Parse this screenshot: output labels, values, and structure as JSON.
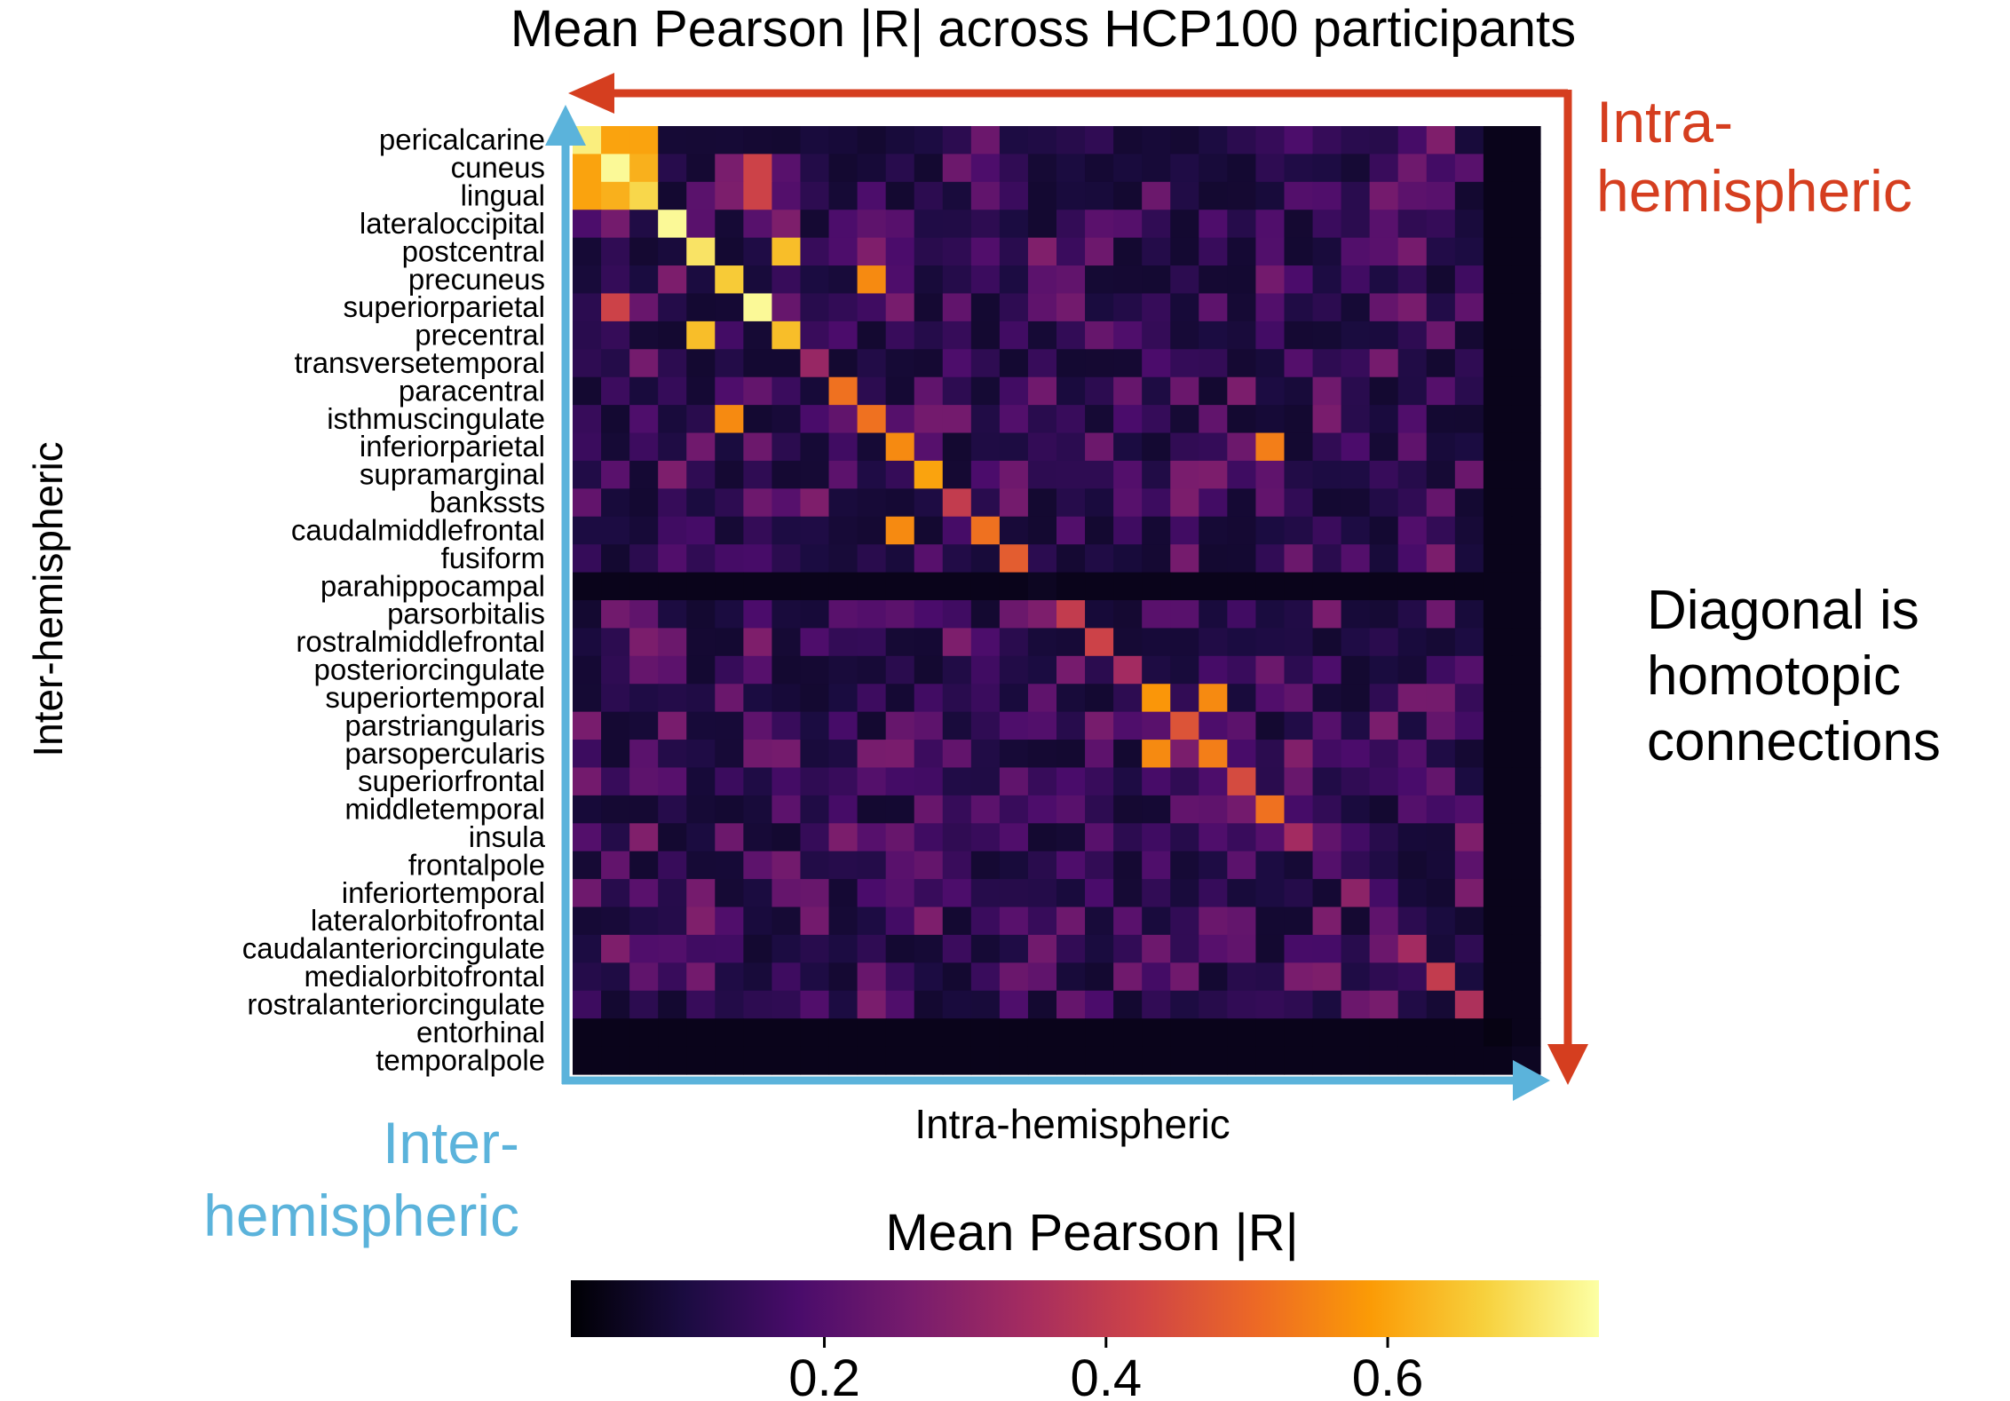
{
  "colors": {
    "intra_arrow": "#d53e1f",
    "inter_arrow": "#5bb3db",
    "text": "#000000",
    "matrix_bg": "#000004"
  },
  "chart_data": {
    "type": "heatmap",
    "title": "Mean Pearson |R| across HCP100 participants",
    "xlabel": "Intra-hemispheric",
    "ylabel": "Inter-hemispheric",
    "row_labels": [
      "pericalcarine",
      "cuneus",
      "lingual",
      "lateraloccipital",
      "postcentral",
      "precuneus",
      "superiorparietal",
      "precentral",
      "transversetemporal",
      "paracentral",
      "isthmuscingulate",
      "inferiorparietal",
      "supramarginal",
      "bankssts",
      "caudalmiddlefrontal",
      "fusiform",
      "parahippocampal",
      "parsorbitalis",
      "rostralmiddlefrontal",
      "posteriorcingulate",
      "superiortemporal",
      "parstriangularis",
      "parsopercularis",
      "superiorfrontal",
      "middletemporal",
      "insula",
      "frontalpole",
      "inferiortemporal",
      "lateralorbitofrontal",
      "caudalanteriorcingulate",
      "medialorbitofrontal",
      "rostralanteriorcingulate",
      "entorhinal",
      "temporalpole"
    ],
    "colorbar": {
      "label": "Mean Pearson |R|",
      "range": [
        0.02,
        0.75
      ],
      "ticks": [
        0.2,
        0.4,
        0.6
      ],
      "tick_labels": [
        "0.2",
        "0.4",
        "0.6"
      ],
      "colormap": "inferno"
    },
    "diagonal_values": [
      0.72,
      0.74,
      0.68,
      0.74,
      0.7,
      0.66,
      0.74,
      0.64,
      0.32,
      0.52,
      0.52,
      0.56,
      0.6,
      0.4,
      0.52,
      0.48,
      0.06,
      0.4,
      0.42,
      0.34,
      0.58,
      0.46,
      0.54,
      0.44,
      0.52,
      0.34,
      0.2,
      0.3,
      0.22,
      0.34,
      0.4,
      0.36,
      0.04,
      0.06
    ],
    "notable_values": [
      {
        "row": 0,
        "col": 1,
        "value": 0.6
      },
      {
        "row": 0,
        "col": 2,
        "value": 0.6
      },
      {
        "row": 1,
        "col": 0,
        "value": 0.6
      },
      {
        "row": 1,
        "col": 2,
        "value": 0.62
      },
      {
        "row": 2,
        "col": 0,
        "value": 0.6
      },
      {
        "row": 2,
        "col": 1,
        "value": 0.62
      },
      {
        "row": 4,
        "col": 7,
        "value": 0.64
      },
      {
        "row": 7,
        "col": 4,
        "value": 0.64
      },
      {
        "row": 5,
        "col": 10,
        "value": 0.56
      },
      {
        "row": 10,
        "col": 5,
        "value": 0.56
      },
      {
        "row": 14,
        "col": 11,
        "value": 0.56
      },
      {
        "row": 11,
        "col": 24,
        "value": 0.54
      },
      {
        "row": 22,
        "col": 20,
        "value": 0.56
      },
      {
        "row": 20,
        "col": 22,
        "value": 0.56
      },
      {
        "row": 1,
        "col": 6,
        "value": 0.42
      },
      {
        "row": 6,
        "col": 1,
        "value": 0.42
      },
      {
        "row": 2,
        "col": 6,
        "value": 0.42
      }
    ],
    "dark_rows": [
      16,
      32,
      33
    ],
    "dark_cols": [
      32,
      33
    ]
  },
  "annotations": {
    "intra_top": [
      "Intra-",
      "hemispheric"
    ],
    "inter_bottom": [
      "Inter-",
      "hemispheric"
    ],
    "diagonal_note": [
      "Diagonal is",
      "homotopic",
      "connections"
    ]
  }
}
